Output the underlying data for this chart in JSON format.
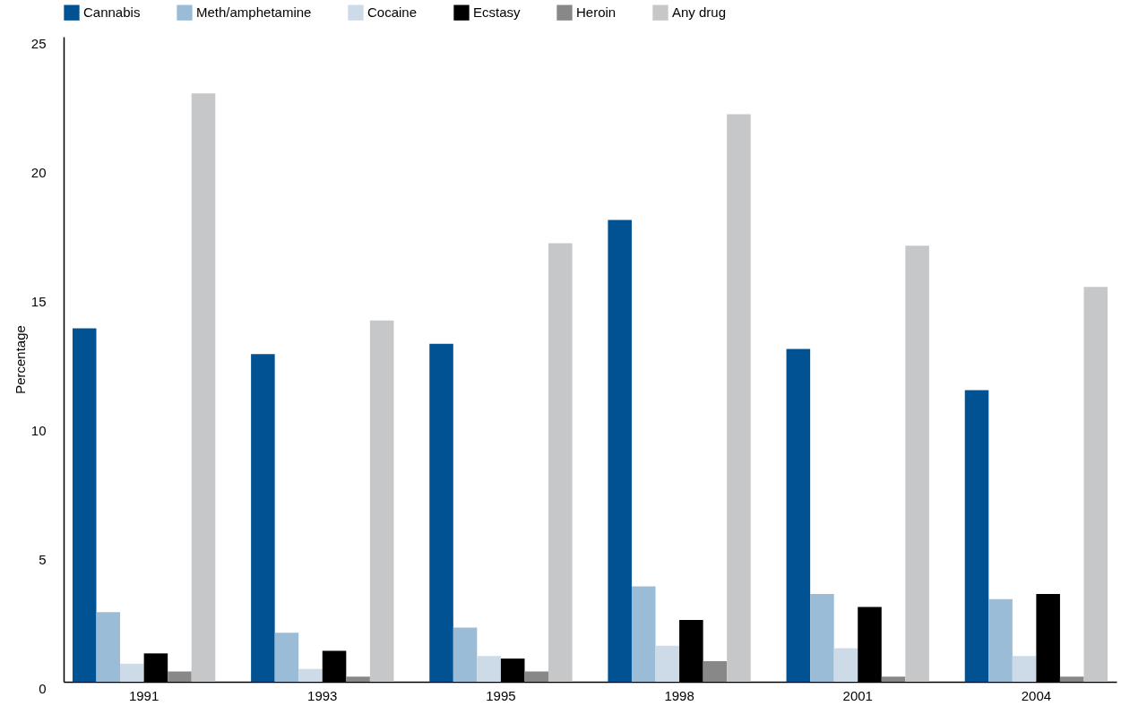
{
  "chart_data": {
    "type": "bar",
    "ylabel": "Percentage",
    "categories": [
      "1991",
      "1993",
      "1995",
      "1998",
      "2001",
      "2004"
    ],
    "series": [
      {
        "name": "Cannabis",
        "color": "#005293",
        "values": [
          13.7,
          12.7,
          13.1,
          17.9,
          12.9,
          11.3
        ]
      },
      {
        "name": "Meth/amphetamine",
        "color": "#9bbcd6",
        "values": [
          2.7,
          1.9,
          2.1,
          3.7,
          3.4,
          3.2
        ]
      },
      {
        "name": "Cocaine",
        "color": "#cddbe8",
        "values": [
          0.7,
          0.5,
          1.0,
          1.4,
          1.3,
          1.0
        ]
      },
      {
        "name": "Ecstasy",
        "color": "#000000",
        "values": [
          1.1,
          1.2,
          0.9,
          2.4,
          2.9,
          3.4
        ]
      },
      {
        "name": "Heroin",
        "color": "#888888",
        "values": [
          0.4,
          0.2,
          0.4,
          0.8,
          0.2,
          0.2
        ]
      },
      {
        "name": "Any drug",
        "color": "#c6c7c9",
        "values": [
          22.8,
          14.0,
          17.0,
          22.0,
          16.9,
          15.3
        ]
      }
    ],
    "ylim": [
      0,
      25
    ],
    "yticks": [
      0,
      5,
      10,
      15,
      20,
      25
    ],
    "grid": false,
    "legend": "top"
  }
}
